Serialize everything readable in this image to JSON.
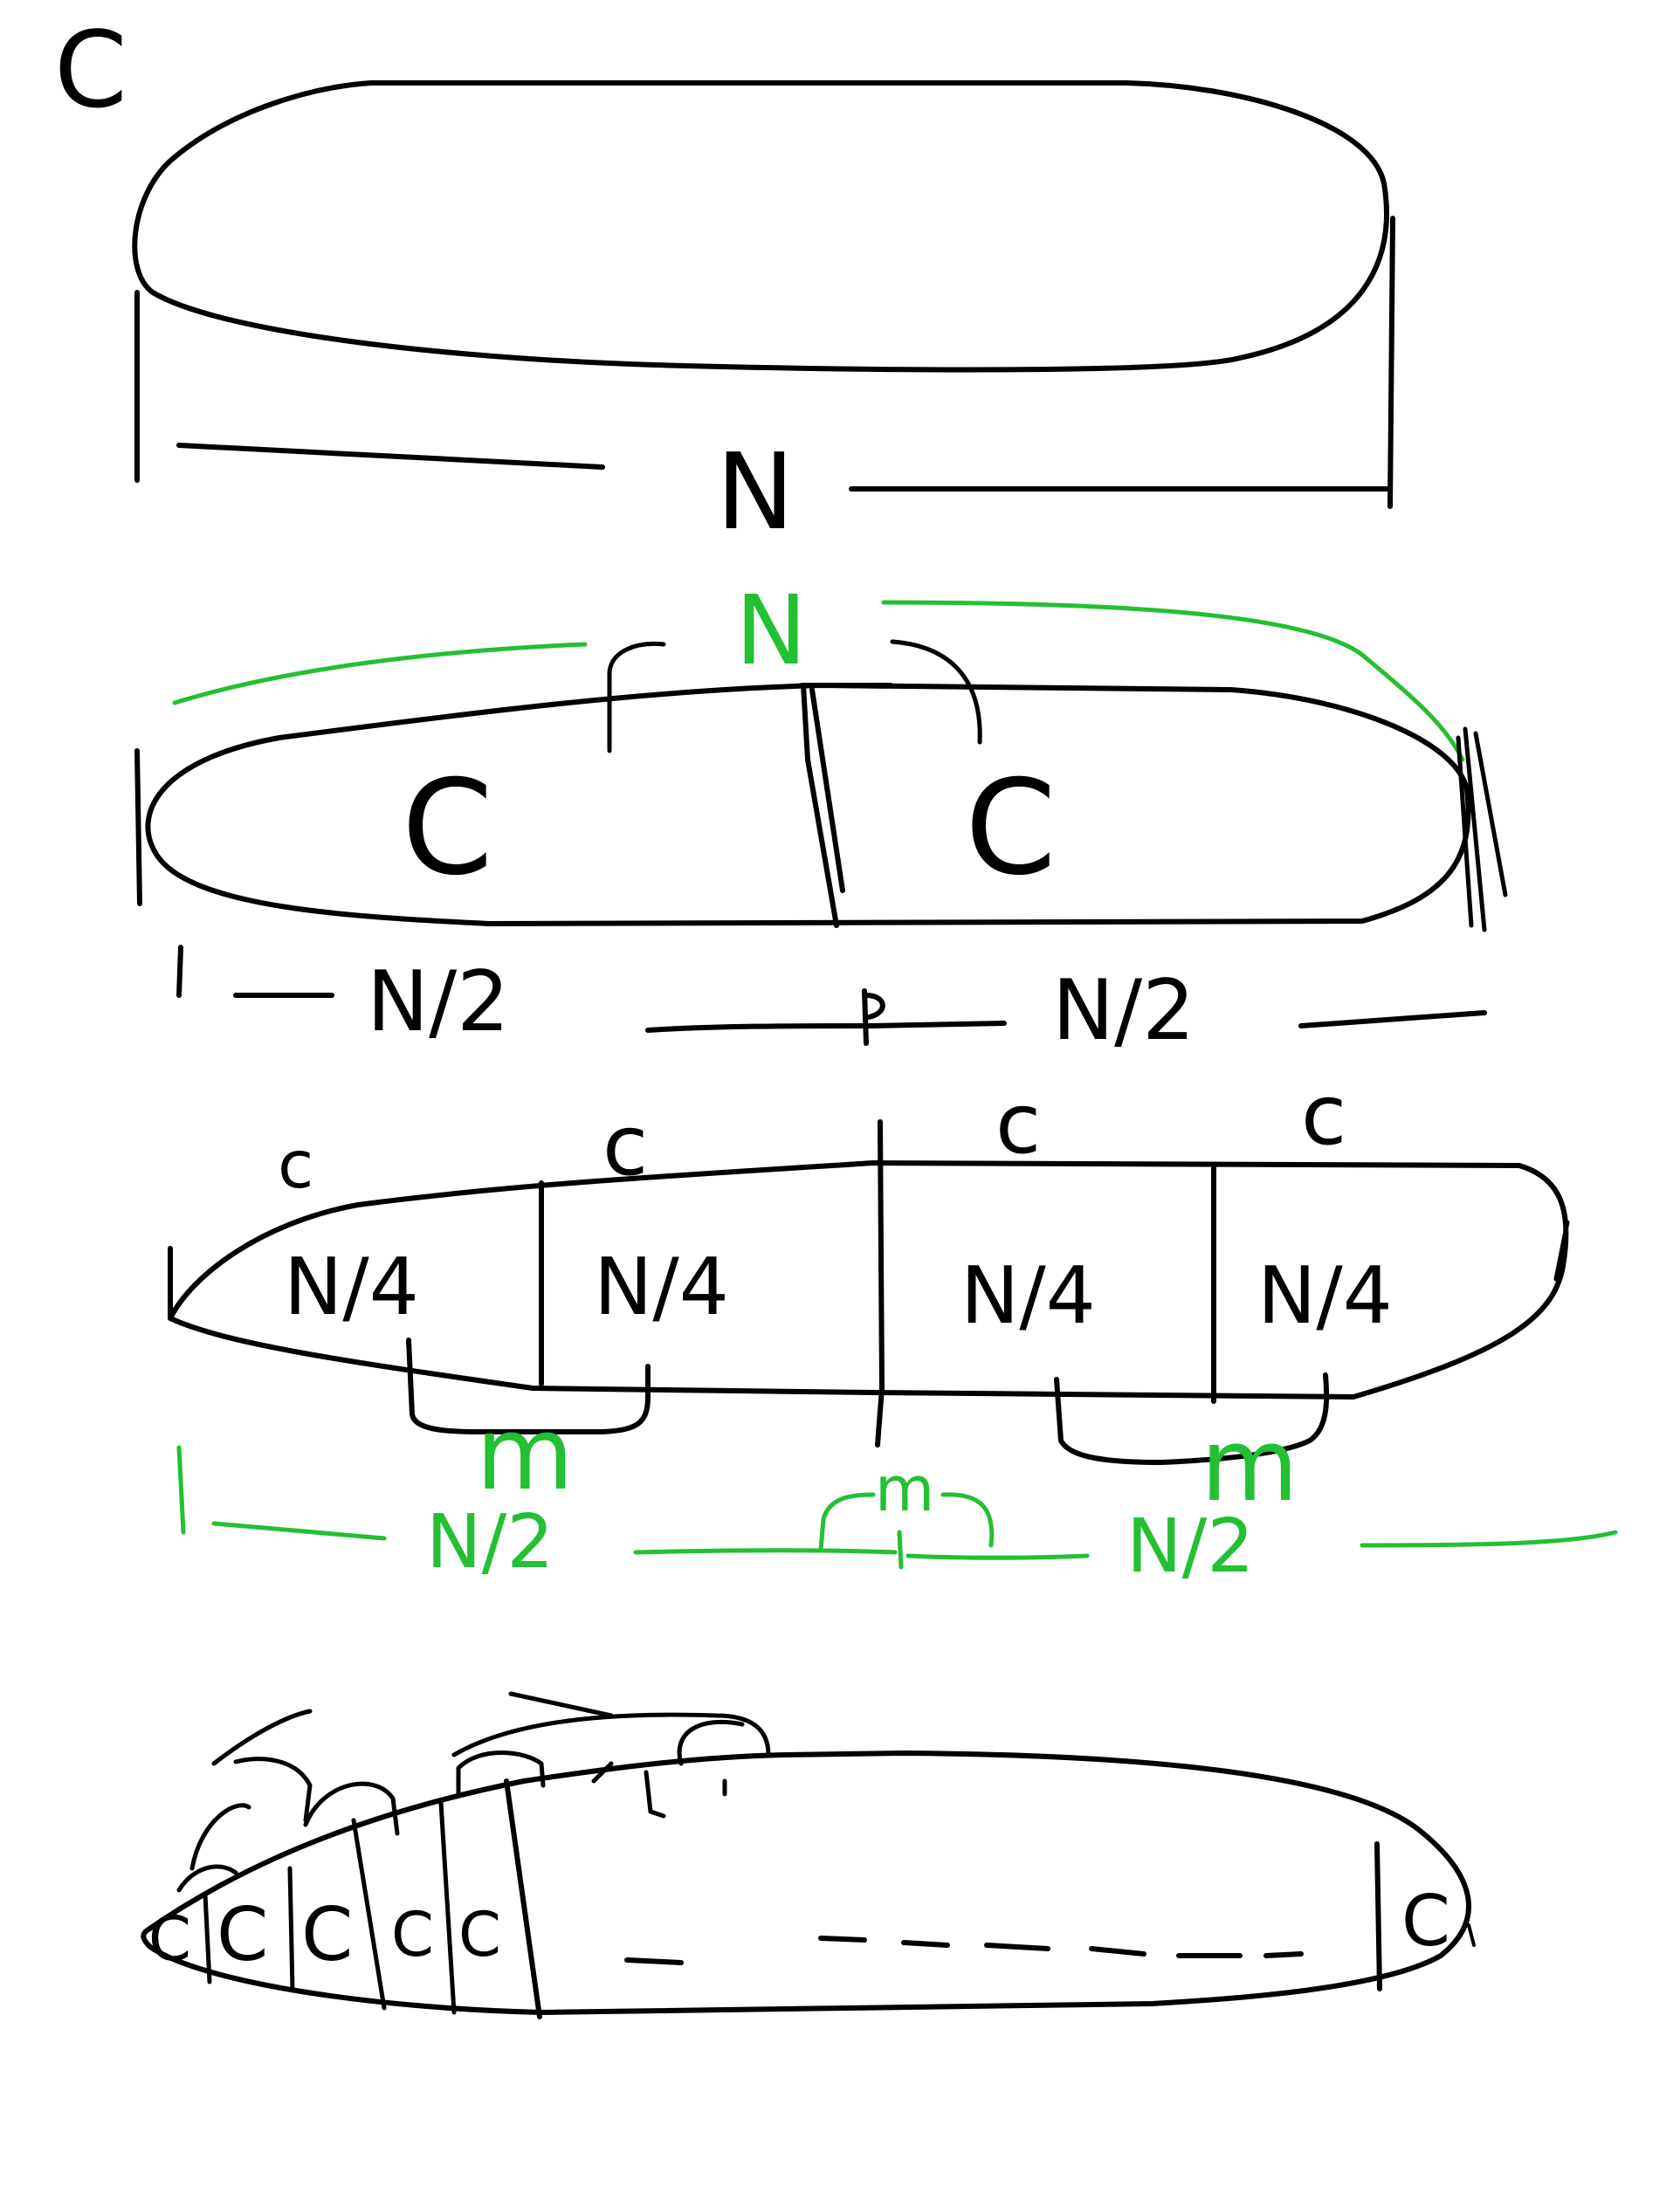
{
  "colors": {
    "ink": "#000000",
    "highlight": "#22c032",
    "background": "#ffffff"
  },
  "diagram": {
    "panel1": {
      "cost_label": "C",
      "length_label": "N"
    },
    "panel2": {
      "top_label": "N",
      "left_cost": "C",
      "right_cost": "C",
      "left_length": "N/2",
      "right_length": "N/2"
    },
    "panel3": {
      "costs": [
        "c",
        "c",
        "c",
        "c"
      ],
      "segments": [
        "N/4",
        "N/4",
        "N/4",
        "N/4"
      ],
      "merge_label": "m",
      "left_length": "N/2",
      "right_length": "N/2"
    },
    "panel4": {
      "costs": [
        "C",
        "C",
        "C",
        "C",
        "C"
      ],
      "last_cost": "C"
    }
  }
}
